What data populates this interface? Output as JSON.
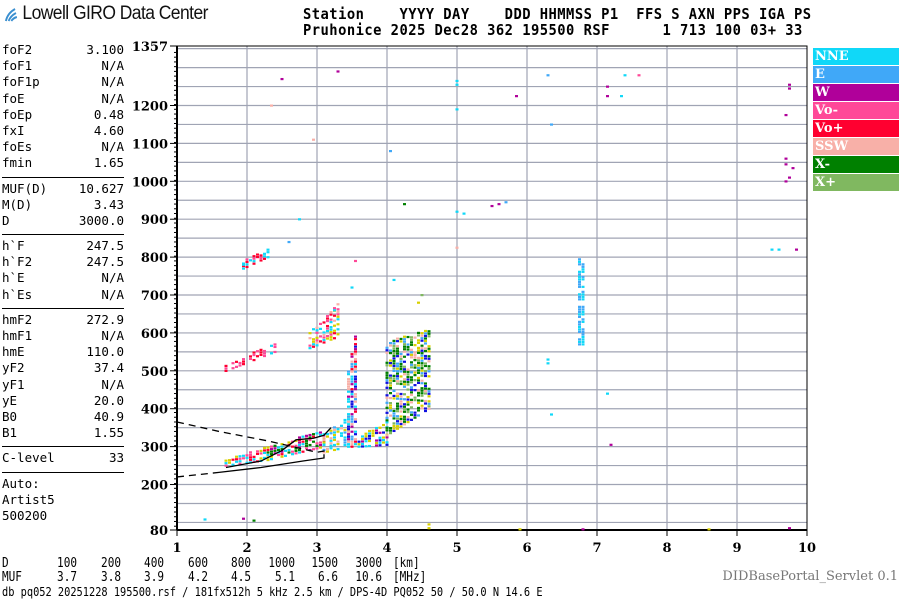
{
  "brand": {
    "title": "Lowell GIRO Data Center",
    "icon": "signal-waves-icon",
    "icon_color": "#3a8fd0"
  },
  "header": {
    "line1": "Station    YYYY DAY    DDD HHMMSS P1  FFS S AXN PPS IGA PS",
    "line2": "Pruhonice 2025 Dec28 362 195500 RSF      1 713 100 03+ 33"
  },
  "params": {
    "group1": [
      {
        "label": "foF2",
        "value": "3.100"
      },
      {
        "label": "foF1",
        "value": "N/A"
      },
      {
        "label": "foF1p",
        "value": "N/A"
      },
      {
        "label": "foE",
        "value": "N/A"
      },
      {
        "label": "foEp",
        "value": "0.48"
      },
      {
        "label": "fxI",
        "value": "4.60"
      },
      {
        "label": "foEs",
        "value": "N/A"
      },
      {
        "label": "fmin",
        "value": "1.65"
      }
    ],
    "group2": [
      {
        "label": "MUF(D)",
        "value": "10.627"
      },
      {
        "label": "M(D)",
        "value": "3.43"
      },
      {
        "label": "D",
        "value": "3000.0"
      }
    ],
    "group3": [
      {
        "label": "h`F",
        "value": "247.5"
      },
      {
        "label": "h`F2",
        "value": "247.5"
      },
      {
        "label": "h`E",
        "value": "N/A"
      },
      {
        "label": "h`Es",
        "value": "N/A"
      }
    ],
    "group4": [
      {
        "label": "hmF2",
        "value": "272.9"
      },
      {
        "label": "hmF1",
        "value": "N/A"
      },
      {
        "label": "hmE",
        "value": "110.0"
      },
      {
        "label": "yF2",
        "value": "37.4"
      },
      {
        "label": "yF1",
        "value": "N/A"
      },
      {
        "label": "yE",
        "value": "20.0"
      },
      {
        "label": "B0",
        "value": "40.9"
      },
      {
        "label": "B1",
        "value": "1.55"
      }
    ],
    "group5": [
      {
        "label": "C-level",
        "value": "33"
      }
    ],
    "auto": [
      "Auto:",
      "Artist5",
      "500200"
    ]
  },
  "dtable": {
    "d_label": "D",
    "d_values": [
      "100",
      "200",
      "400",
      "600",
      "800",
      "1000",
      "1500",
      "3000"
    ],
    "d_unit": "[km]",
    "muf_label": "MUF",
    "muf_values": [
      "3.7",
      "3.8",
      "3.9",
      "4.2",
      "4.5",
      "5.1",
      "6.6",
      "10.6"
    ],
    "muf_unit": "[MHz]"
  },
  "footer": {
    "servlet": "DIDBasePortal_Servlet 0.1",
    "db_line": "db pq052 20251228 195500.rsf / 181fx512h 5 kHz 2.5 km / DPS-4D PQ052 50 / 50.0 N 14.6 E"
  },
  "chart_data": {
    "type": "scatter",
    "xlim": [
      1,
      10
    ],
    "ylim": [
      80,
      1357
    ],
    "x_ticks": [
      "1",
      "2",
      "3",
      "4",
      "5",
      "6",
      "7",
      "8",
      "9",
      "10"
    ],
    "y_ticks": [
      "1357",
      "1200",
      "1100",
      "1000",
      "900",
      "800",
      "700",
      "600",
      "500",
      "400",
      "300",
      "200",
      "80"
    ],
    "grid": true,
    "legend_position": "right",
    "legend": [
      {
        "name": "NNE",
        "color": "#10d8f8"
      },
      {
        "name": "E",
        "color": "#40a8f8"
      },
      {
        "name": "W",
        "color": "#b0009a"
      },
      {
        "name": "Vo-",
        "color": "#ff4898"
      },
      {
        "name": "Vo+",
        "color": "#ff0030"
      },
      {
        "name": "SSW",
        "color": "#f8b0a8"
      },
      {
        "name": "X-",
        "color": "#008000"
      },
      {
        "name": "X+",
        "color": "#80b860"
      }
    ],
    "extra_colors": {
      "yellow": "#d8d000",
      "blue": "#1010e0"
    },
    "traces": [
      {
        "f": [
          1.7,
          2.3
        ],
        "h_start": [
          250,
          265
        ],
        "h_end": [
          265,
          300
        ],
        "pols": [
          "Vo+",
          "Vo-",
          "yellow",
          "NNE"
        ]
      },
      {
        "f": [
          2.3,
          3.1
        ],
        "h_start": [
          265,
          300
        ],
        "h_end": [
          300,
          345
        ],
        "pols": [
          "yellow",
          "Vo-",
          "NNE",
          "W",
          "X-",
          "Vo+"
        ]
      },
      {
        "f": [
          3.1,
          3.45
        ],
        "h_start": [
          285,
          330
        ],
        "h_end": [
          300,
          380
        ],
        "pols": [
          "NNE",
          "E",
          "yellow",
          "SSW",
          "NNE"
        ]
      },
      {
        "f": [
          3.45,
          3.55
        ],
        "h_start": [
          300,
          500
        ],
        "h_end": [
          300,
          600
        ],
        "pols": [
          "E",
          "NNE",
          "W",
          "Vo+",
          "SSW",
          "blue"
        ]
      },
      {
        "f": [
          3.6,
          4.0
        ],
        "h_start": [
          300,
          330
        ],
        "h_end": [
          305,
          365
        ],
        "pols": [
          "NNE",
          "yellow",
          "W",
          "blue",
          "NNE"
        ]
      },
      {
        "f": [
          4.0,
          4.6
        ],
        "h_start": [
          330,
          580
        ],
        "h_end": [
          400,
          610
        ],
        "pols": [
          "X-",
          "X+",
          "yellow",
          "SSW",
          "E",
          "blue",
          "X-"
        ]
      },
      {
        "f": [
          1.7,
          2.4
        ],
        "h_start": [
          500,
          515
        ],
        "h_end": [
          550,
          575
        ],
        "pols": [
          "Vo-",
          "Vo+",
          "NNE",
          "Vo-"
        ]
      },
      {
        "f": [
          2.9,
          3.3
        ],
        "h_start": [
          560,
          600
        ],
        "h_end": [
          590,
          680
        ],
        "pols": [
          "Vo-",
          "Vo+",
          "SSW",
          "yellow",
          "NNE"
        ]
      },
      {
        "f": [
          1.95,
          2.3
        ],
        "h_start": [
          770,
          790
        ],
        "h_end": [
          800,
          820
        ],
        "pols": [
          "Vo+",
          "Vo-",
          "NNE"
        ]
      },
      {
        "f": [
          6.75,
          6.8
        ],
        "h_start": [
          570,
          800
        ],
        "h_end": [
          570,
          800
        ],
        "pols": [
          "NNE",
          "E"
        ]
      }
    ],
    "echoes": [
      [
        5.0,
        1265,
        "NNE"
      ],
      [
        5.0,
        1255,
        "NNE"
      ],
      [
        5.0,
        1190,
        "NNE"
      ],
      [
        5.85,
        1225,
        "W"
      ],
      [
        6.3,
        1280,
        "E"
      ],
      [
        6.35,
        1150,
        "E"
      ],
      [
        7.15,
        1250,
        "W"
      ],
      [
        7.15,
        1225,
        "W"
      ],
      [
        7.35,
        1225,
        "NNE"
      ],
      [
        7.4,
        1280,
        "NNE"
      ],
      [
        7.6,
        1280,
        "Vo-"
      ],
      [
        9.75,
        1255,
        "W"
      ],
      [
        9.75,
        1245,
        "W"
      ],
      [
        9.7,
        1175,
        "W"
      ],
      [
        9.7,
        1060,
        "W"
      ],
      [
        9.7,
        1045,
        "W"
      ],
      [
        9.8,
        1035,
        "W"
      ],
      [
        9.75,
        1010,
        "W"
      ],
      [
        9.7,
        1000,
        "W"
      ],
      [
        4.05,
        1080,
        "E"
      ],
      [
        5.5,
        935,
        "W"
      ],
      [
        5.6,
        940,
        "W"
      ],
      [
        5.7,
        945,
        "E"
      ],
      [
        5.0,
        920,
        "NNE"
      ],
      [
        5.1,
        915,
        "NNE"
      ],
      [
        9.5,
        820,
        "NNE"
      ],
      [
        9.6,
        820,
        "NNE"
      ],
      [
        9.85,
        820,
        "W"
      ],
      [
        6.3,
        530,
        "NNE"
      ],
      [
        6.3,
        520,
        "NNE"
      ],
      [
        6.35,
        385,
        "NNE"
      ],
      [
        7.2,
        305,
        "W"
      ],
      [
        4.6,
        95,
        "yellow"
      ],
      [
        4.6,
        85,
        "yellow"
      ],
      [
        1.95,
        110,
        "W"
      ],
      [
        2.1,
        105,
        "X-"
      ],
      [
        1.4,
        108,
        "NNE"
      ],
      [
        5.9,
        82,
        "yellow"
      ],
      [
        8.6,
        82,
        "yellow"
      ],
      [
        9.75,
        85,
        "W"
      ],
      [
        6.8,
        82,
        "W"
      ],
      [
        2.35,
        1200,
        "SSW"
      ],
      [
        2.5,
        1270,
        "W"
      ],
      [
        2.95,
        1110,
        "SSW"
      ],
      [
        2.6,
        840,
        "E"
      ],
      [
        2.75,
        900,
        "NNE"
      ],
      [
        1.95,
        780,
        "NNE"
      ],
      [
        5.0,
        825,
        "SSW"
      ],
      [
        4.25,
        940,
        "X-"
      ],
      [
        7.15,
        440,
        "NNE"
      ],
      [
        4.1,
        740,
        "NNE"
      ],
      [
        3.5,
        720,
        "NNE"
      ],
      [
        3.55,
        790,
        "Vo-"
      ],
      [
        4.5,
        700,
        "X+"
      ],
      [
        4.45,
        680,
        "yellow"
      ],
      [
        3.25,
        660,
        "NNE"
      ],
      [
        3.3,
        1290,
        "W"
      ]
    ],
    "lines": [
      {
        "style": "dashed",
        "points": [
          [
            1.0,
            365
          ],
          [
            1.6,
            340
          ],
          [
            2.3,
            315
          ],
          [
            3.0,
            285
          ],
          [
            3.15,
            290
          ]
        ]
      },
      {
        "style": "dashed",
        "points": [
          [
            1.0,
            220
          ],
          [
            1.6,
            232
          ]
        ]
      },
      {
        "style": "solid",
        "points": [
          [
            1.6,
            232
          ],
          [
            2.2,
            245
          ],
          [
            2.8,
            262
          ],
          [
            3.1,
            270
          ],
          [
            3.1,
            280
          ]
        ]
      },
      {
        "style": "solid",
        "points": [
          [
            1.7,
            245
          ],
          [
            2.2,
            262
          ],
          [
            2.5,
            290
          ],
          [
            2.7,
            318
          ],
          [
            2.95,
            322
          ],
          [
            3.1,
            330
          ],
          [
            3.2,
            350
          ]
        ]
      }
    ]
  }
}
